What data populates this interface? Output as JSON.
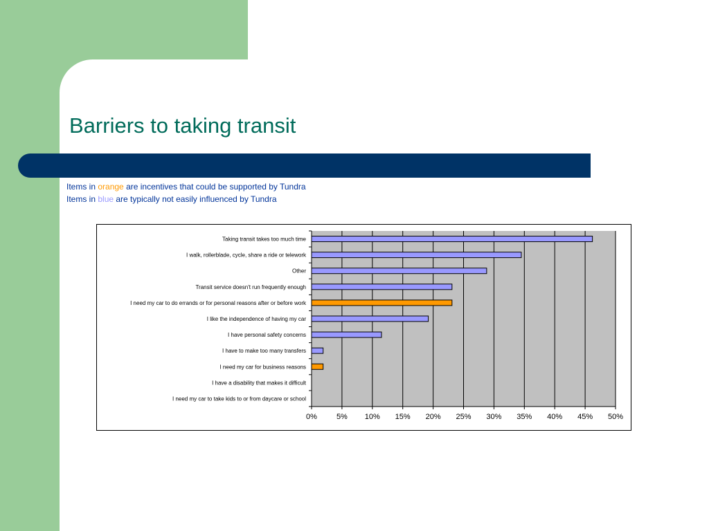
{
  "slide": {
    "title": "Barriers to taking transit",
    "note1": {
      "prefix": "Items in ",
      "highlight": "orange",
      "suffix": " are incentives that could be supported by Tundra"
    },
    "note2": {
      "prefix": "Items in ",
      "highlight": "blue",
      "suffix": " are typically not easily influenced by Tundra"
    }
  },
  "colors": {
    "background_green": "#99cc99",
    "title_teal": "#006b5a",
    "band_navy": "#003366",
    "text_blue": "#003399",
    "bar_blue": "#9999ff",
    "bar_orange": "#ff9900",
    "plot_gray": "#c0c0c0"
  },
  "chart_data": {
    "type": "bar",
    "orientation": "horizontal",
    "categories": [
      "Taking transit takes too much time",
      "I walk, rollerblade, cycle, share a ride or telework",
      "Other",
      "Transit service doesn't run frequently enough",
      "I need my car to do errands or for personal reasons after or before work",
      "I like the independence of having my car",
      "I have personal safety concerns",
      "I have to make too many transfers",
      "I need my car for business reasons",
      "I have a disability that makes it difficult",
      "I need my car to take kids to or from daycare or school"
    ],
    "values": [
      46.2,
      34.5,
      28.8,
      23.1,
      23.1,
      19.2,
      11.5,
      1.9,
      1.9,
      0,
      0
    ],
    "bar_colors": [
      "blue",
      "blue",
      "blue",
      "blue",
      "orange",
      "blue",
      "blue",
      "blue",
      "orange",
      "blue",
      "blue"
    ],
    "xlim": [
      0,
      50
    ],
    "x_ticks": [
      "0%",
      "5%",
      "10%",
      "15%",
      "20%",
      "25%",
      "30%",
      "35%",
      "40%",
      "45%",
      "50%"
    ],
    "grid": true,
    "title": "",
    "xlabel": "",
    "ylabel": ""
  }
}
